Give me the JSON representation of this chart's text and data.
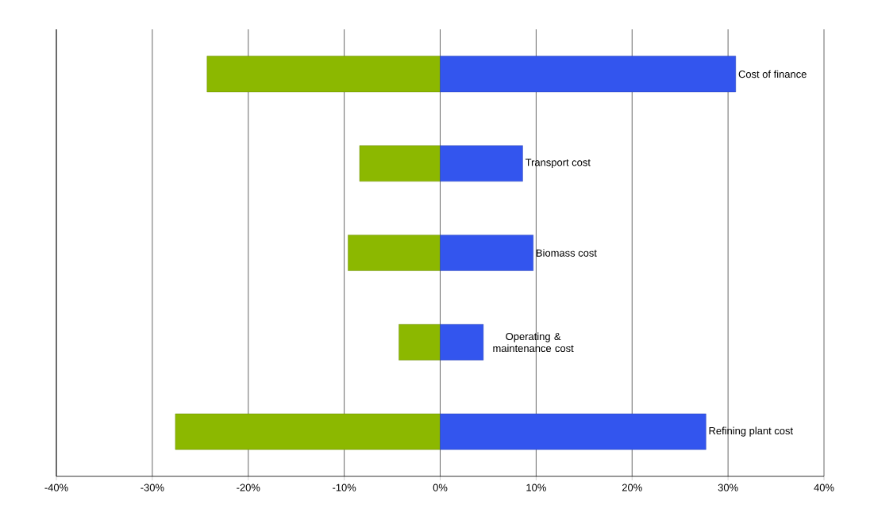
{
  "chart_data": {
    "type": "bar",
    "orientation": "horizontal",
    "categories": [
      "Cost of finance",
      "Transport cost",
      "Biomass cost",
      "Operating & maintenance cost",
      "Refining plant cost"
    ],
    "series": [
      {
        "color": "#8cb800",
        "values": [
          -24.3,
          -8.4,
          -9.6,
          -4.3,
          -27.6
        ]
      },
      {
        "color": "#3355ee",
        "values": [
          30.8,
          8.6,
          9.7,
          4.5,
          27.7
        ]
      }
    ],
    "xlim": [
      -40,
      40
    ],
    "xticks": [
      {
        "value": -40,
        "label": "-40%"
      },
      {
        "value": -30,
        "label": "-30%"
      },
      {
        "value": -20,
        "label": "-20%"
      },
      {
        "value": -10,
        "label": "-10%"
      },
      {
        "value": 0,
        "label": "0%"
      },
      {
        "value": 10,
        "label": "10%"
      },
      {
        "value": 20,
        "label": "20%"
      },
      {
        "value": 30,
        "label": "30%"
      },
      {
        "value": 40,
        "label": "40%"
      }
    ],
    "grid": "x",
    "tick_labels": "x",
    "stacked": true
  }
}
